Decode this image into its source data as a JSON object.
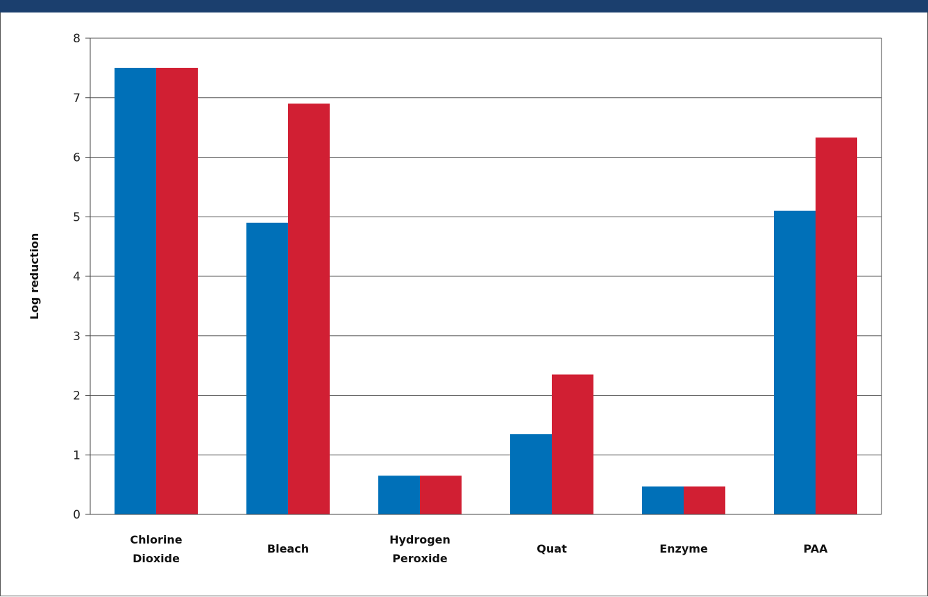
{
  "chart_data": {
    "type": "bar",
    "title": "",
    "xlabel": "",
    "ylabel": "Log reduction",
    "ylim": [
      0,
      8
    ],
    "yticks": [
      0,
      1,
      2,
      3,
      4,
      5,
      6,
      7,
      8
    ],
    "grid": true,
    "legend": "none",
    "categories": [
      [
        "Chlorine",
        "Dioxide"
      ],
      [
        "Bleach"
      ],
      [
        "Hydrogen",
        "Peroxide"
      ],
      [
        "Quat"
      ],
      [
        "Enzyme"
      ],
      [
        "PAA"
      ]
    ],
    "series": [
      {
        "color": "#0070b8",
        "values": [
          7.5,
          4.9,
          0.65,
          1.35,
          0.47,
          5.1
        ]
      },
      {
        "color": "#d11f33",
        "values": [
          7.5,
          6.9,
          0.65,
          2.35,
          0.47,
          6.33
        ]
      }
    ]
  },
  "colors": {
    "header_bar": "#1b3f6e",
    "gridline": "#555555",
    "axis": "#444444"
  }
}
